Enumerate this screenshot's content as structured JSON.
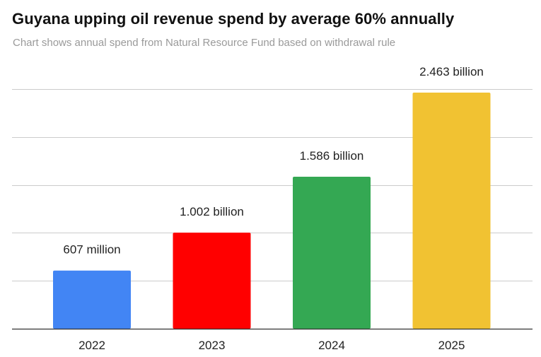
{
  "title": "Guyana upping oil revenue spend by average 60% annually",
  "subtitle": "Chart shows annual spend from Natural Resource Fund based on withdrawal rule",
  "chart_data": {
    "type": "bar",
    "categories": [
      "2022",
      "2023",
      "2024",
      "2025"
    ],
    "values": [
      0.607,
      1.002,
      1.586,
      2.463
    ],
    "value_labels": [
      "607 million",
      "1.002 billion",
      "1.586 billion",
      "2.463 billion"
    ],
    "colors": [
      "#4285f4",
      "#ff0000",
      "#34a853",
      "#f1c232"
    ],
    "ylim": [
      0,
      2.5
    ],
    "y_grid": true,
    "y_tick_labels_shown": false,
    "xlabel": "",
    "ylabel": ""
  }
}
